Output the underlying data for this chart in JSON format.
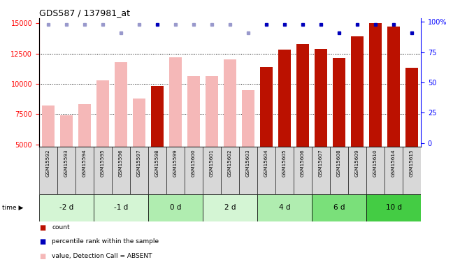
{
  "title": "GDS587 / 137981_at",
  "samples": [
    "GSM15592",
    "GSM15593",
    "GSM15594",
    "GSM15595",
    "GSM15596",
    "GSM15597",
    "GSM15598",
    "GSM15599",
    "GSM15600",
    "GSM15601",
    "GSM15602",
    "GSM15603",
    "GSM15604",
    "GSM15605",
    "GSM15606",
    "GSM15607",
    "GSM15608",
    "GSM15609",
    "GSM15610",
    "GSM15614",
    "GSM15615"
  ],
  "bar_values": [
    8200,
    7400,
    8300,
    10300,
    11800,
    8800,
    9800,
    12200,
    10600,
    10600,
    12000,
    9500,
    11400,
    12800,
    13300,
    12900,
    12100,
    13900,
    15000,
    14700,
    11300
  ],
  "bar_absent": [
    true,
    true,
    true,
    true,
    true,
    true,
    false,
    true,
    true,
    true,
    true,
    true,
    false,
    false,
    false,
    false,
    false,
    false,
    false,
    false,
    false
  ],
  "percentile_absent": [
    true,
    true,
    true,
    true,
    true,
    true,
    false,
    true,
    true,
    true,
    true,
    true,
    false,
    false,
    false,
    false,
    false,
    false,
    false,
    false,
    false
  ],
  "percentile_pct": [
    98,
    98,
    98,
    98,
    91,
    98,
    98,
    98,
    98,
    98,
    98,
    91,
    98,
    98,
    98,
    98,
    91,
    98,
    98,
    98,
    91
  ],
  "time_groups": [
    {
      "label": "-2 d",
      "start": 0,
      "end": 3,
      "color": "#d4f5d4"
    },
    {
      "label": "-1 d",
      "start": 3,
      "end": 6,
      "color": "#d4f5d4"
    },
    {
      "label": "0 d",
      "start": 6,
      "end": 9,
      "color": "#b0edb0"
    },
    {
      "label": "2 d",
      "start": 9,
      "end": 12,
      "color": "#d4f5d4"
    },
    {
      "label": "4 d",
      "start": 12,
      "end": 15,
      "color": "#b0edb0"
    },
    {
      "label": "6 d",
      "start": 15,
      "end": 18,
      "color": "#7ae07a"
    },
    {
      "label": "10 d",
      "start": 18,
      "end": 21,
      "color": "#44cc44"
    }
  ],
  "ylim_left": [
    4800,
    15400
  ],
  "ylim_right": [
    -3,
    103
  ],
  "yticks_left": [
    5000,
    7500,
    10000,
    12500,
    15000
  ],
  "yticks_right": [
    0,
    25,
    50,
    75,
    100
  ],
  "bar_color_present": "#bb1100",
  "bar_color_absent": "#f5b8b8",
  "dot_color_present": "#0000bb",
  "dot_color_absent": "#9999cc",
  "label_bg_color": "#d8d8d8"
}
